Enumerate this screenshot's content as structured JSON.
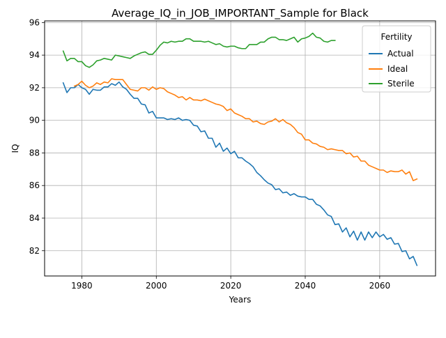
{
  "chart_data": {
    "type": "line",
    "title": "Average_IQ_in_JOB_IMPORTANT_Sample for Black",
    "xlabel": "Years",
    "ylabel": "IQ",
    "xlim": [
      1970,
      2075
    ],
    "ylim": [
      80.45,
      96.1
    ],
    "x_ticks": [
      1980,
      2000,
      2020,
      2040,
      2060
    ],
    "y_ticks": [
      82,
      84,
      86,
      88,
      90,
      92,
      94,
      96
    ],
    "grid": true,
    "legend": {
      "title": "Fertility",
      "placement": "top-right"
    },
    "series": [
      {
        "name": "Actual",
        "color": "#1f77b4",
        "x": [
          1975,
          1976,
          1977,
          1978,
          1979,
          1980,
          1981,
          1982,
          1983,
          1984,
          1985,
          1986,
          1987,
          1988,
          1989,
          1990,
          1991,
          1992,
          1993,
          1994,
          1995,
          1996,
          1997,
          1998,
          1999,
          2000,
          2001,
          2002,
          2003,
          2004,
          2005,
          2006,
          2007,
          2008,
          2009,
          2010,
          2011,
          2012,
          2013,
          2014,
          2015,
          2016,
          2017,
          2018,
          2019,
          2020,
          2021,
          2022,
          2023,
          2024,
          2025,
          2026,
          2027,
          2028,
          2029,
          2030,
          2031,
          2032,
          2033,
          2034,
          2035,
          2036,
          2037,
          2038,
          2039,
          2040,
          2041,
          2042,
          2043,
          2044,
          2045,
          2046,
          2047,
          2048,
          2049,
          2050,
          2051,
          2052,
          2053,
          2054,
          2055,
          2056,
          2057,
          2058,
          2059,
          2060,
          2061,
          2062,
          2063,
          2064,
          2065,
          2066,
          2067,
          2068,
          2069,
          2070
        ],
        "values": [
          92.3,
          91.7,
          92.0,
          92.0,
          92.2,
          92.0,
          91.9,
          91.6,
          91.9,
          91.85,
          91.85,
          92.05,
          92.05,
          92.25,
          92.15,
          92.35,
          92.05,
          91.9,
          91.6,
          91.35,
          91.35,
          91.0,
          90.95,
          90.45,
          90.55,
          90.15,
          90.15,
          90.15,
          90.05,
          90.1,
          90.05,
          90.15,
          90.0,
          90.05,
          90.0,
          89.7,
          89.65,
          89.3,
          89.35,
          88.9,
          88.9,
          88.35,
          88.6,
          88.1,
          88.3,
          87.95,
          88.1,
          87.7,
          87.7,
          87.5,
          87.35,
          87.15,
          86.8,
          86.6,
          86.35,
          86.15,
          86.05,
          85.75,
          85.8,
          85.55,
          85.6,
          85.4,
          85.5,
          85.35,
          85.3,
          85.3,
          85.15,
          85.15,
          84.85,
          84.75,
          84.5,
          84.2,
          84.1,
          83.6,
          83.65,
          83.15,
          83.4,
          82.85,
          83.2,
          82.65,
          83.15,
          82.65,
          83.15,
          82.8,
          83.15,
          82.85,
          83.0,
          82.7,
          82.8,
          82.4,
          82.45,
          81.95,
          82.0,
          81.5,
          81.65,
          81.1
        ]
      },
      {
        "name": "Ideal",
        "color": "#ff7f0e",
        "x": [
          1978,
          1979,
          1980,
          1981,
          1982,
          1983,
          1984,
          1985,
          1986,
          1987,
          1988,
          1989,
          1990,
          1991,
          1992,
          1993,
          1994,
          1995,
          1996,
          1997,
          1998,
          1999,
          2000,
          2001,
          2002,
          2003,
          2004,
          2005,
          2006,
          2007,
          2008,
          2009,
          2010,
          2011,
          2012,
          2013,
          2014,
          2015,
          2016,
          2017,
          2018,
          2019,
          2020,
          2021,
          2022,
          2023,
          2024,
          2025,
          2026,
          2027,
          2028,
          2029,
          2030,
          2031,
          2032,
          2033,
          2034,
          2035,
          2036,
          2037,
          2038,
          2039,
          2040,
          2041,
          2042,
          2043,
          2044,
          2045,
          2046,
          2047,
          2048,
          2049,
          2050,
          2051,
          2052,
          2053,
          2054,
          2055,
          2056,
          2057,
          2058,
          2059,
          2060,
          2061,
          2062,
          2063,
          2064,
          2065,
          2066,
          2067,
          2068,
          2069,
          2070
        ],
        "values": [
          92.1,
          92.2,
          92.4,
          92.15,
          92.0,
          92.1,
          92.3,
          92.2,
          92.35,
          92.3,
          92.55,
          92.5,
          92.5,
          92.5,
          92.2,
          91.9,
          91.85,
          91.8,
          92.0,
          92.0,
          91.85,
          92.05,
          91.9,
          92.0,
          91.95,
          91.75,
          91.65,
          91.55,
          91.4,
          91.45,
          91.25,
          91.4,
          91.25,
          91.25,
          91.2,
          91.3,
          91.2,
          91.1,
          91.0,
          90.95,
          90.85,
          90.6,
          90.7,
          90.45,
          90.35,
          90.25,
          90.1,
          90.1,
          89.9,
          89.95,
          89.8,
          89.75,
          89.9,
          89.95,
          90.1,
          89.9,
          90.05,
          89.85,
          89.75,
          89.55,
          89.25,
          89.15,
          88.8,
          88.8,
          88.6,
          88.55,
          88.4,
          88.35,
          88.2,
          88.25,
          88.2,
          88.15,
          88.15,
          87.95,
          88.0,
          87.75,
          87.8,
          87.5,
          87.5,
          87.25,
          87.15,
          87.05,
          86.95,
          86.95,
          86.8,
          86.9,
          86.85,
          86.85,
          86.95,
          86.7,
          86.85,
          86.3,
          86.4
        ]
      },
      {
        "name": "Sterile",
        "color": "#2ca02c",
        "x": [
          1975,
          1976,
          1977,
          1978,
          1979,
          1980,
          1981,
          1982,
          1983,
          1984,
          1985,
          1986,
          1987,
          1988,
          1989,
          1990,
          1991,
          1992,
          1993,
          1994,
          1995,
          1996,
          1997,
          1998,
          1999,
          2000,
          2001,
          2002,
          2003,
          2004,
          2005,
          2006,
          2007,
          2008,
          2009,
          2010,
          2011,
          2012,
          2013,
          2014,
          2015,
          2016,
          2017,
          2018,
          2019,
          2020,
          2021,
          2022,
          2023,
          2024,
          2025,
          2026,
          2027,
          2028,
          2029,
          2030,
          2031,
          2032,
          2033,
          2034,
          2035,
          2036,
          2037,
          2038,
          2039,
          2040,
          2041,
          2042,
          2043,
          2044,
          2045,
          2046,
          2047,
          2048
        ],
        "values": [
          94.25,
          93.65,
          93.8,
          93.8,
          93.6,
          93.6,
          93.35,
          93.25,
          93.4,
          93.65,
          93.7,
          93.8,
          93.75,
          93.7,
          94.0,
          93.95,
          93.9,
          93.85,
          93.8,
          93.95,
          94.05,
          94.15,
          94.2,
          94.05,
          94.05,
          94.3,
          94.6,
          94.8,
          94.75,
          94.85,
          94.8,
          94.85,
          94.85,
          95.0,
          95.0,
          94.85,
          94.85,
          94.85,
          94.8,
          94.85,
          94.75,
          94.65,
          94.7,
          94.55,
          94.5,
          94.55,
          94.55,
          94.45,
          94.4,
          94.4,
          94.65,
          94.65,
          94.65,
          94.8,
          94.8,
          95.0,
          95.1,
          95.1,
          94.95,
          94.95,
          94.9,
          95.0,
          95.1,
          94.8,
          95.0,
          95.05,
          95.15,
          95.35,
          95.1,
          95.05,
          94.85,
          94.8,
          94.9,
          94.9
        ]
      }
    ]
  }
}
